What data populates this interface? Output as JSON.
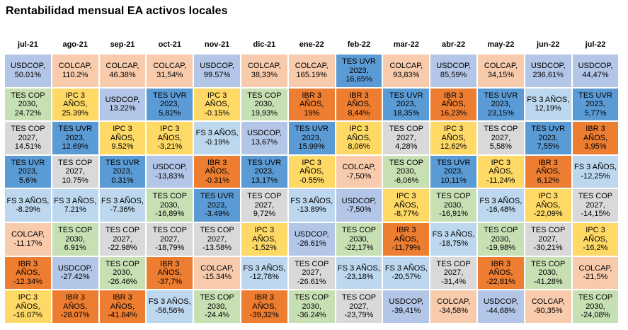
{
  "chart_data": {
    "type": "table",
    "title": "Rentabilidad mensual EA activos locales",
    "columns": [
      "jul-21",
      "ago-21",
      "sep-21",
      "oct-21",
      "nov-21",
      "dic-21",
      "ene-22",
      "feb-22",
      "mar-22",
      "abr-22",
      "may-22",
      "jun-22",
      "jul-22"
    ],
    "colors": {
      "USDCOP": "#b4c6e7",
      "COLCAP": "#f8cbad",
      "TES_COP_2030": "#c6e0b4",
      "TES_COP_2027": "#d9d9d9",
      "TES_UVR_2023": "#5b9bd5",
      "IPC_3_ANOS": "#ffd966",
      "IBR_3_ANOS": "#ed7d31",
      "FS_3_ANOS": "#bdd7ee"
    },
    "rows": [
      [
        {
          "text": "USDCOP,\n50.01%",
          "color": "USDCOP"
        },
        {
          "text": "COLCAP,\n110.2%",
          "color": "COLCAP"
        },
        {
          "text": "COLCAP,\n46.38%",
          "color": "COLCAP"
        },
        {
          "text": "COLCAP,\n31,54%",
          "color": "COLCAP"
        },
        {
          "text": "USDCOP,\n99.57%",
          "color": "USDCOP"
        },
        {
          "text": "COLCAP,\n38,33%",
          "color": "COLCAP"
        },
        {
          "text": "COLCAP,\n165.19%",
          "color": "COLCAP"
        },
        {
          "text": "TES UVR\n2023,\n16,65%",
          "color": "TES_UVR_2023"
        },
        {
          "text": "COLCAP,\n93,83%",
          "color": "COLCAP"
        },
        {
          "text": "USDCOP,\n85,59%",
          "color": "USDCOP"
        },
        {
          "text": "COLCAP,\n34,15%",
          "color": "COLCAP"
        },
        {
          "text": "USDCOP,\n236,61%",
          "color": "USDCOP"
        },
        {
          "text": "USDCOP,\n44,47%",
          "color": "USDCOP"
        }
      ],
      [
        {
          "text": "TES COP\n2030,\n24.72%",
          "color": "TES_COP_2030"
        },
        {
          "text": "IPC 3 AÑOS,\n25.39%",
          "color": "IPC_3_ANOS"
        },
        {
          "text": "USDCOP,\n13.22%",
          "color": "USDCOP"
        },
        {
          "text": "TES UVR\n2023,\n5,82%",
          "color": "TES_UVR_2023"
        },
        {
          "text": "IPC 3 AÑOS,\n-0.15%",
          "color": "IPC_3_ANOS"
        },
        {
          "text": "TES COP\n2030,\n19,93%",
          "color": "TES_COP_2030"
        },
        {
          "text": "IBR 3 AÑOS,\n19%",
          "color": "IBR_3_ANOS"
        },
        {
          "text": "IBR 3 AÑOS,\n8,44%",
          "color": "IBR_3_ANOS"
        },
        {
          "text": "TES UVR\n2023,\n18,35%",
          "color": "TES_UVR_2023"
        },
        {
          "text": "IBR 3 AÑOS,\n16,23%",
          "color": "IBR_3_ANOS"
        },
        {
          "text": "TES UVR\n2023,\n23,15%",
          "color": "TES_UVR_2023"
        },
        {
          "text": "FS 3 AÑOS,\n12,19%",
          "color": "FS_3_ANOS"
        },
        {
          "text": "TES UVR\n2023,\n5,77%",
          "color": "TES_UVR_2023"
        }
      ],
      [
        {
          "text": "TES COP\n2027,\n14.51%",
          "color": "TES_COP_2027"
        },
        {
          "text": "TES UVR\n2023,\n12.69%",
          "color": "TES_UVR_2023"
        },
        {
          "text": "IPC 3 AÑOS,\n9.52%",
          "color": "IPC_3_ANOS"
        },
        {
          "text": "IPC 3 AÑOS,\n-3,21%",
          "color": "IPC_3_ANOS"
        },
        {
          "text": "FS 3 AÑOS,\n-0.19%",
          "color": "FS_3_ANOS"
        },
        {
          "text": "USDCOP,\n13,67%",
          "color": "USDCOP"
        },
        {
          "text": "TES UVR\n2023,\n15.99%",
          "color": "TES_UVR_2023"
        },
        {
          "text": "IPC 3 AÑOS,\n8,06%",
          "color": "IPC_3_ANOS"
        },
        {
          "text": "TES COP\n2027,\n4,28%",
          "color": "TES_COP_2027"
        },
        {
          "text": "IPC 3 AÑOS,\n12,62%",
          "color": "IPC_3_ANOS"
        },
        {
          "text": "TES COP\n2027,\n5,58%",
          "color": "TES_COP_2027"
        },
        {
          "text": "TES UVR\n2023,\n7,55%",
          "color": "TES_UVR_2023"
        },
        {
          "text": "IBR 3 AÑOS,\n3,95%",
          "color": "IBR_3_ANOS"
        }
      ],
      [
        {
          "text": "TES UVR\n2023,\n5.6%",
          "color": "TES_UVR_2023"
        },
        {
          "text": "TES COP\n2027,\n10.75%",
          "color": "TES_COP_2027"
        },
        {
          "text": "TES UVR\n2023,\n0.31%",
          "color": "TES_UVR_2023"
        },
        {
          "text": "USDCOP,\n-13,83%",
          "color": "USDCOP"
        },
        {
          "text": "IBR 3 AÑOS,\n-0.31%",
          "color": "IBR_3_ANOS"
        },
        {
          "text": "TES UVR\n2023,\n13,17%",
          "color": "TES_UVR_2023"
        },
        {
          "text": "IPC 3 AÑOS,\n-0.55%",
          "color": "IPC_3_ANOS"
        },
        {
          "text": "COLCAP,\n-7,50%",
          "color": "COLCAP"
        },
        {
          "text": "TES COP\n2030,\n-6,06%",
          "color": "TES_COP_2030"
        },
        {
          "text": "TES UVR\n2023,\n10,11%",
          "color": "TES_UVR_2023"
        },
        {
          "text": "IPC 3 AÑOS,\n-11,24%",
          "color": "IPC_3_ANOS"
        },
        {
          "text": "IBR 3 AÑOS,\n6,12%",
          "color": "IBR_3_ANOS"
        },
        {
          "text": "FS 3 AÑOS,\n-12,25%",
          "color": "FS_3_ANOS"
        }
      ],
      [
        {
          "text": "FS 3 AÑOS,\n-8.29%",
          "color": "FS_3_ANOS"
        },
        {
          "text": "FS 3 AÑOS,\n7.21%",
          "color": "FS_3_ANOS"
        },
        {
          "text": "FS 3 AÑOS,\n-7.36%",
          "color": "FS_3_ANOS"
        },
        {
          "text": "TES COP\n2030,\n-16,89%",
          "color": "TES_COP_2030"
        },
        {
          "text": "TES UVR\n2023,\n-3.49%",
          "color": "TES_UVR_2023"
        },
        {
          "text": "TES COP\n2027,\n9,72%",
          "color": "TES_COP_2027"
        },
        {
          "text": "FS 3 AÑOS,\n-13.89%",
          "color": "FS_3_ANOS"
        },
        {
          "text": "USDCOP,\n-7,50%",
          "color": "USDCOP"
        },
        {
          "text": "IPC 3 AÑOS,\n-8,77%",
          "color": "IPC_3_ANOS"
        },
        {
          "text": "TES COP\n2030,\n-16,91%",
          "color": "TES_COP_2030"
        },
        {
          "text": "FS 3 AÑOS,\n-16,48%",
          "color": "FS_3_ANOS"
        },
        {
          "text": "IPC 3 AÑOS,\n-22,09%",
          "color": "IPC_3_ANOS"
        },
        {
          "text": "TES COP\n2027,\n-14,15%",
          "color": "TES_COP_2027"
        }
      ],
      [
        {
          "text": "COLCAP,\n-11.17%",
          "color": "COLCAP"
        },
        {
          "text": "TES COP\n2030,\n6.91%",
          "color": "TES_COP_2030"
        },
        {
          "text": "TES COP\n2027,\n-22.98%",
          "color": "TES_COP_2027"
        },
        {
          "text": "TES COP\n2027,\n-18,79%",
          "color": "TES_COP_2027"
        },
        {
          "text": "TES COP\n2027,\n-13.58%",
          "color": "TES_COP_2027"
        },
        {
          "text": "IPC 3 AÑOS,\n-1,52%",
          "color": "IPC_3_ANOS"
        },
        {
          "text": "USDCOP,\n-26.61%",
          "color": "USDCOP"
        },
        {
          "text": "TES COP\n2030,\n-22,17%",
          "color": "TES_COP_2030"
        },
        {
          "text": "IBR 3 AÑOS,\n-11,79%",
          "color": "IBR_3_ANOS"
        },
        {
          "text": "FS 3 AÑOS,\n-18,75%",
          "color": "FS_3_ANOS"
        },
        {
          "text": "TES COP\n2030,\n-19,98%",
          "color": "TES_COP_2030"
        },
        {
          "text": "TES COP\n2027,\n-30,21%",
          "color": "TES_COP_2027"
        },
        {
          "text": "IPC 3 AÑOS,\n-16,2%",
          "color": "IPC_3_ANOS"
        }
      ],
      [
        {
          "text": "IBR 3 AÑOS,\n-12.34%",
          "color": "IBR_3_ANOS"
        },
        {
          "text": "USDCOP,\n-27.42%",
          "color": "USDCOP"
        },
        {
          "text": "TES COP\n2030,\n-26.46%",
          "color": "TES_COP_2030"
        },
        {
          "text": "IBR 3 AÑOS,\n-37,7%",
          "color": "IBR_3_ANOS"
        },
        {
          "text": "COLCAP,\n-15.34%",
          "color": "COLCAP"
        },
        {
          "text": "FS 3 AÑOS,\n-12,78%",
          "color": "FS_3_ANOS"
        },
        {
          "text": "TES COP\n2027,\n-26.61%",
          "color": "TES_COP_2027"
        },
        {
          "text": "FS 3 AÑOS,\n-23,18%",
          "color": "FS_3_ANOS"
        },
        {
          "text": "FS 3 AÑOS,\n-20,57%",
          "color": "FS_3_ANOS"
        },
        {
          "text": "TES COP\n2027,\n-31,4%",
          "color": "TES_COP_2027"
        },
        {
          "text": "IBR 3 AÑOS,\n-22,81%",
          "color": "IBR_3_ANOS"
        },
        {
          "text": "TES COP\n2030,\n-41,28%",
          "color": "TES_COP_2030"
        },
        {
          "text": "COLCAP,\n-21,5%",
          "color": "COLCAP"
        }
      ],
      [
        {
          "text": "IPC 3 AÑOS,\n-16.07%",
          "color": "IPC_3_ANOS"
        },
        {
          "text": "IBR 3 AÑOS,\n-28.07%",
          "color": "IBR_3_ANOS"
        },
        {
          "text": "IBR 3 AÑOS,\n-41.84%",
          "color": "IBR_3_ANOS"
        },
        {
          "text": "FS 3 AÑOS,\n-56,56%",
          "color": "FS_3_ANOS"
        },
        {
          "text": "TES COP\n2030,\n-24.4%",
          "color": "TES_COP_2030"
        },
        {
          "text": "IBR 3 AÑOS,\n-39,32%",
          "color": "IBR_3_ANOS"
        },
        {
          "text": "TES COP\n2030,\n-36.24%",
          "color": "TES_COP_2030"
        },
        {
          "text": "TES COP\n2027,\n-23,79%",
          "color": "TES_COP_2027"
        },
        {
          "text": "USDCOP,\n-39,41%",
          "color": "USDCOP"
        },
        {
          "text": "COLCAP,\n-34,58%",
          "color": "COLCAP"
        },
        {
          "text": "USDCOP,\n-44,68%",
          "color": "USDCOP"
        },
        {
          "text": "COLCAP,\n-90,35%",
          "color": "COLCAP"
        },
        {
          "text": "TES COP\n2030,\n-24,08%",
          "color": "TES_COP_2030"
        }
      ]
    ]
  }
}
